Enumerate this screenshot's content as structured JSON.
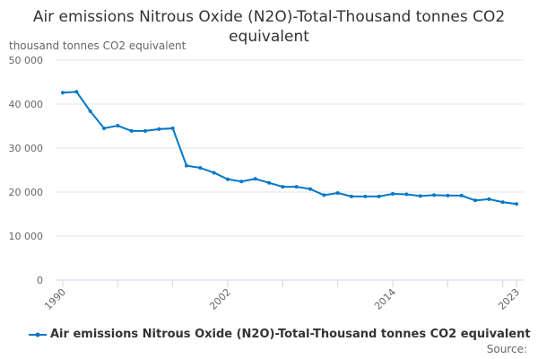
{
  "chart_data": {
    "type": "line",
    "title": "Air emissions Nitrous Oxide (N2O)-Total-Thousand tonnes CO2 equivalent",
    "ylabel": "thousand tonnes CO2 equivalent",
    "ylim": [
      0,
      50000
    ],
    "yticks": [
      "0",
      "10 000",
      "20 000",
      "30 000",
      "40 000",
      "50 000"
    ],
    "xticks": [
      "1990",
      "2002",
      "2014",
      "2023"
    ],
    "grid": true,
    "legend_position": "bottom",
    "color": "#0077c8",
    "x": [
      1990,
      1991,
      1992,
      1993,
      1994,
      1995,
      1996,
      1997,
      1998,
      1999,
      2000,
      2001,
      2002,
      2003,
      2004,
      2005,
      2006,
      2007,
      2008,
      2009,
      2010,
      2011,
      2012,
      2013,
      2014,
      2015,
      2016,
      2017,
      2018,
      2019,
      2020,
      2021,
      2022,
      2023
    ],
    "series": [
      {
        "name": "Air emissions Nitrous Oxide (N2O)-Total-Thousand tonnes CO2 equivalent",
        "values": [
          42600,
          42800,
          38400,
          34500,
          35100,
          33900,
          33900,
          34300,
          34500,
          26000,
          25500,
          24400,
          22900,
          22400,
          23000,
          22100,
          21200,
          21200,
          20700,
          19300,
          19800,
          19000,
          19000,
          19000,
          19600,
          19500,
          19100,
          19300,
          19200,
          19200,
          18100,
          18400,
          17700,
          17300
        ]
      }
    ]
  },
  "source": "Source:"
}
